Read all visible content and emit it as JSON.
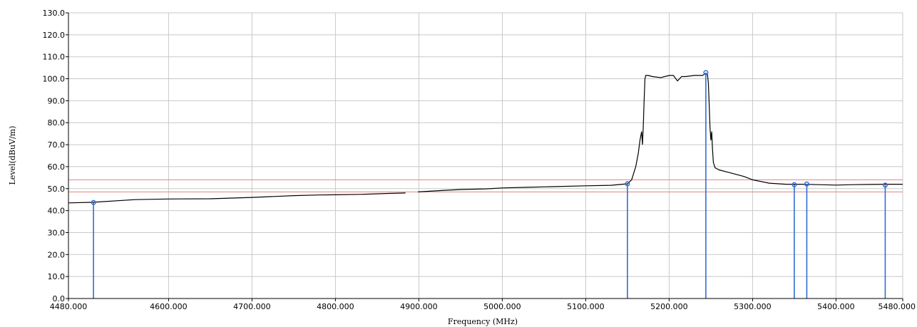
{
  "chart_data": {
    "type": "line",
    "xlabel": "Frequency (MHz)",
    "ylabel": "Level(dBuV/m)",
    "xlim": [
      4480,
      5480
    ],
    "ylim": [
      0,
      130
    ],
    "x_ticks": [
      4480,
      4600,
      4700,
      4800,
      4900,
      5000,
      5100,
      5200,
      5300,
      5400,
      5480
    ],
    "x_tick_labels": [
      "4480.000",
      "4600.000",
      "4700.000",
      "4800.000",
      "4900.000",
      "5000.000",
      "5100.000",
      "5200.000",
      "5300.000",
      "5400.000",
      "5480.000"
    ],
    "y_ticks": [
      0,
      10,
      20,
      30,
      40,
      50,
      60,
      70,
      80,
      90,
      100,
      110,
      120,
      130
    ],
    "y_tick_labels": [
      "0.0",
      "10.0",
      "20.0",
      "30.0",
      "40.0",
      "50.0",
      "60.0",
      "70.0",
      "80.0",
      "90.0",
      "100.0",
      "110.0",
      "120.0",
      "130.0"
    ],
    "grid": true,
    "series": [
      {
        "color": "#000000",
        "segments": [
          {
            "x": [
              4480,
              4510,
              4560,
              4600,
              4650,
              4700,
              4750,
              4780,
              4800,
              4830,
              4860,
              4884
            ],
            "y": [
              43.5,
              43.8,
              45.0,
              45.3,
              45.4,
              46.0,
              46.8,
              47.1,
              47.2,
              47.4,
              47.8,
              48.0
            ]
          },
          {
            "x": [
              4899,
              4920,
              4950,
              4980,
              5000,
              5030,
              5060,
              5100,
              5130,
              5150,
              5155,
              5160,
              5163,
              5165,
              5167,
              5168,
              5169,
              5170,
              5171,
              5172,
              5173,
              5175,
              5180,
              5190,
              5200,
              5205,
              5210,
              5215,
              5220,
              5230,
              5240,
              5244,
              5246,
              5247,
              5248,
              5249,
              5250,
              5251,
              5252,
              5253,
              5255,
              5260,
              5270,
              5280,
              5290,
              5300,
              5320,
              5340,
              5360,
              5380,
              5400,
              5420,
              5440,
              5460,
              5480
            ],
            "y": [
              48.5,
              49.0,
              49.6,
              49.9,
              50.3,
              50.6,
              50.9,
              51.3,
              51.5,
              52.2,
              54.0,
              60.0,
              66.0,
              72.0,
              76.0,
              70.0,
              78.0,
              90.0,
              100.0,
              101.5,
              101.5,
              101.5,
              101.0,
              100.5,
              101.5,
              101.5,
              99.0,
              101.0,
              101.0,
              101.5,
              101.5,
              102.5,
              102.0,
              98.0,
              88.0,
              78.0,
              72.0,
              76.0,
              68.0,
              62.0,
              59.5,
              58.5,
              57.5,
              56.5,
              55.5,
              54.0,
              52.5,
              52.0,
              52.0,
              51.8,
              51.6,
              51.8,
              51.9,
              52.0,
              52.0
            ]
          }
        ]
      }
    ],
    "limit_lines": [
      {
        "y": 54.0,
        "color": "#e88080"
      },
      {
        "y": 48.5,
        "color": "#e88080"
      }
    ],
    "markers": [
      {
        "x": 4510,
        "y": 43.7
      },
      {
        "x": 5150,
        "y": 52.2
      },
      {
        "x": 5244,
        "y": 102.8
      },
      {
        "x": 5350,
        "y": 51.8
      },
      {
        "x": 5365,
        "y": 52.1
      },
      {
        "x": 5459,
        "y": 51.6
      }
    ],
    "marker_color": "#2f6fd0"
  }
}
